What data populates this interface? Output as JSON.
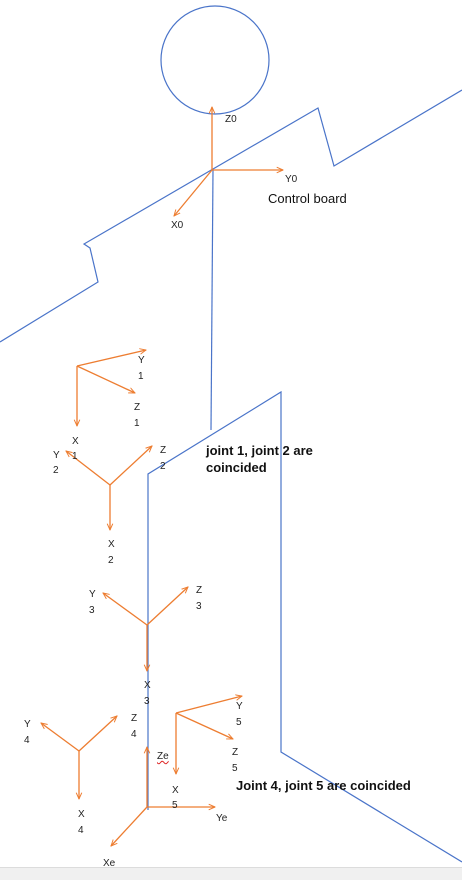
{
  "colors": {
    "structure": "#4a74c9",
    "axes": "#ed7d31",
    "text": "#222222"
  },
  "frames": {
    "frame0": {
      "z": "Z0",
      "y": "Y0",
      "x": "X0"
    },
    "frame1": {
      "y": [
        "Y",
        "1"
      ],
      "z": [
        "Z",
        "1"
      ],
      "x": [
        "X",
        "1"
      ]
    },
    "frame2": {
      "y": [
        "Y",
        "2"
      ],
      "z": [
        "Z",
        "2"
      ],
      "x": [
        "X",
        "2"
      ]
    },
    "frame3": {
      "y": [
        "Y",
        "3"
      ],
      "z": [
        "Z",
        "3"
      ],
      "x": [
        "X",
        "3"
      ]
    },
    "frame4": {
      "y": [
        "Y",
        "4"
      ],
      "z": [
        "Z",
        "4"
      ],
      "x": [
        "X",
        "4"
      ]
    },
    "frame5": {
      "y": [
        "Y",
        "5"
      ],
      "z": [
        "Z",
        "5"
      ],
      "x": [
        "X",
        "5"
      ]
    },
    "frame_e": {
      "z": "Ze",
      "y": "Ye",
      "x": "Xe"
    }
  },
  "notes": {
    "control_board": "Control board",
    "joint12": [
      "joint 1, joint 2 are",
      "coincided"
    ],
    "joint45": "Joint 4, joint 5 are coincided"
  }
}
